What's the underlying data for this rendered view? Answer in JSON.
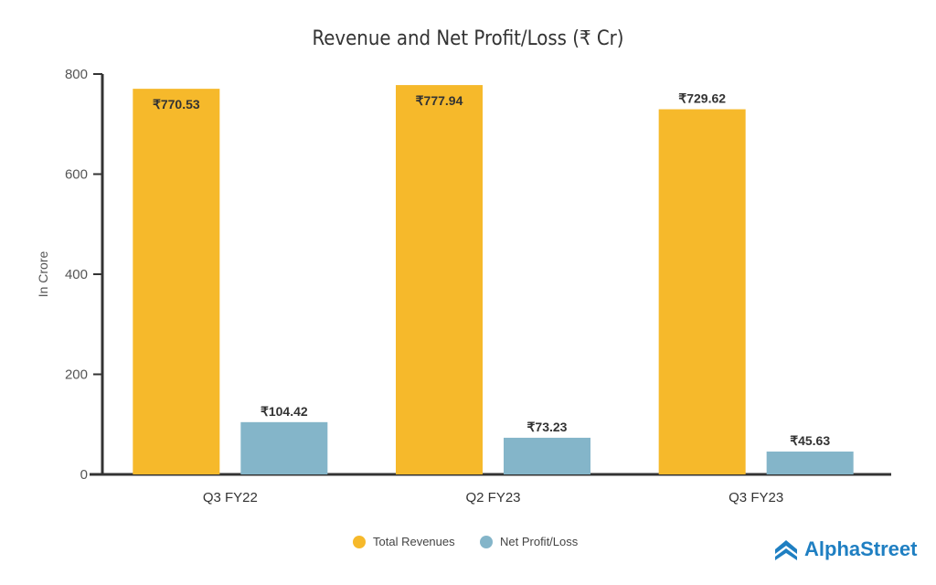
{
  "chart_data": {
    "type": "bar",
    "title": "Revenue and Net Profit/Loss (₹ Cr)",
    "xlabel": "",
    "ylabel": "In Crore",
    "ylim": [
      0,
      800
    ],
    "yticks": [
      0,
      200,
      400,
      600,
      800
    ],
    "grid": false,
    "legend_position": "bottom",
    "categories": [
      "Q3 FY22",
      "Q2 FY23",
      "Q3 FY23"
    ],
    "series": [
      {
        "name": "Total Revenues",
        "color": "#f6b92b",
        "values": [
          770.53,
          777.94,
          729.62
        ],
        "labels": [
          "₹770.53",
          "₹777.94",
          "₹729.62"
        ]
      },
      {
        "name": "Net Profit/Loss",
        "color": "#84b5c9",
        "values": [
          104.42,
          73.23,
          45.63
        ],
        "labels": [
          "₹104.42",
          "₹73.23",
          "₹45.63"
        ]
      }
    ]
  },
  "brand": {
    "logo_text": "AlphaStreet",
    "color": "#1f7fc2"
  }
}
